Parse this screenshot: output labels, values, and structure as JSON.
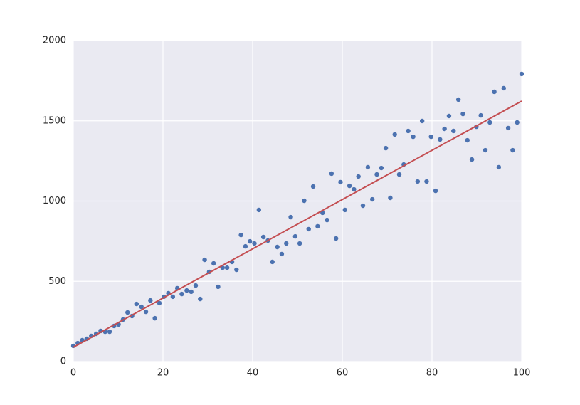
{
  "chart_data": {
    "type": "scatter",
    "x": [
      0,
      1.0,
      2.0,
      3.0,
      4.0,
      5.1,
      6.1,
      7.1,
      8.1,
      9.1,
      10.1,
      11.1,
      12.1,
      13.1,
      14.1,
      15.2,
      16.2,
      17.2,
      18.2,
      19.2,
      20.2,
      21.2,
      22.2,
      23.2,
      24.2,
      25.3,
      26.3,
      27.3,
      28.3,
      29.3,
      30.3,
      31.3,
      32.3,
      33.3,
      34.3,
      35.4,
      36.4,
      37.4,
      38.4,
      39.4,
      40.4,
      41.4,
      42.4,
      43.4,
      44.4,
      45.5,
      46.5,
      47.5,
      48.5,
      49.5,
      50.5,
      51.5,
      52.5,
      53.5,
      54.5,
      55.6,
      56.6,
      57.6,
      58.6,
      59.6,
      60.6,
      61.6,
      62.6,
      63.6,
      64.6,
      65.7,
      66.7,
      67.7,
      68.7,
      69.7,
      70.7,
      71.7,
      72.7,
      73.7,
      74.7,
      75.8,
      76.8,
      77.8,
      78.8,
      79.8,
      80.8,
      81.8,
      82.8,
      83.8,
      84.8,
      85.9,
      86.9,
      87.9,
      88.9,
      89.9,
      90.9,
      91.9,
      92.9,
      93.9,
      94.9,
      96.0,
      97.0,
      98.0,
      99.0,
      100.0
    ],
    "series": [
      {
        "color": "#4c72b0",
        "values": [
          98,
          115,
          133,
          142,
          160,
          173,
          191,
          186,
          186,
          222,
          231,
          262,
          306,
          284,
          359,
          341,
          310,
          381,
          270,
          364,
          404,
          426,
          404,
          457,
          421,
          443,
          435,
          474,
          390,
          634,
          559,
          612,
          466,
          585,
          585,
          621,
          572,
          789,
          718,
          749,
          736,
          945,
          776,
          754,
          621,
          714,
          670,
          736,
          900,
          780,
          736,
          1002,
          825,
          1091,
          843,
          927,
          882,
          1171,
          767,
          1118,
          945,
          1095,
          1073,
          1153,
          971,
          1211,
          1011,
          1166,
          1206,
          1330,
          1020,
          1415,
          1166,
          1228,
          1437,
          1401,
          1122,
          1499,
          1122,
          1401,
          1064,
          1384,
          1450,
          1530,
          1437,
          1632,
          1543,
          1379,
          1259,
          1463,
          1534,
          1317,
          1490,
          1681,
          1211,
          1703,
          1455,
          1317,
          1490,
          1792
        ]
      }
    ],
    "fit": {
      "type": "line",
      "color": "#c44e52",
      "x": [
        0,
        100
      ],
      "values": [
        89,
        1623
      ]
    },
    "xlim": [
      0,
      100
    ],
    "xticks": [
      0,
      20,
      40,
      60,
      80,
      100
    ],
    "ylim": [
      0,
      2000
    ],
    "yticks": [
      0,
      500,
      1000,
      1500,
      2000
    ],
    "grid": true
  }
}
